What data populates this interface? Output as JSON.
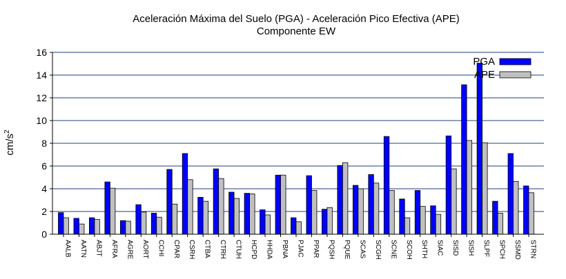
{
  "chart_data": {
    "type": "bar",
    "title": "Aceleración Máxima del Suelo (PGA) -  Aceleración Pico Efectiva (APE)",
    "subtitle": "Componente EW",
    "xlabel": "",
    "ylabel": "cm/s",
    "ylabel_superscript": "2",
    "ylim": [
      0,
      16
    ],
    "yticks": [
      "0",
      "2",
      "4",
      "6",
      "8",
      "10",
      "12",
      "14",
      "16"
    ],
    "grid": true,
    "legend_position": "top-right",
    "categories": [
      "AALB",
      "AATN",
      "ABJT",
      "AFRA",
      "AGRE",
      "AORT",
      "CCHI",
      "CPAR",
      "CSRH",
      "CTBA",
      "CTRH",
      "CTUH",
      "HCPD",
      "HHDA",
      "PBNA",
      "PJAC",
      "PPAR",
      "PQSH",
      "PQUE",
      "SCAS",
      "SCGH",
      "SCNE",
      "SCOH",
      "SHTH",
      "SIAC",
      "SISD",
      "SISH",
      "SLPF",
      "SPCH",
      "SSMD",
      "STRN"
    ],
    "series": [
      {
        "name": "PGA",
        "color": "#0000ff",
        "values": [
          1.9,
          1.4,
          1.45,
          4.6,
          1.2,
          2.6,
          1.85,
          5.7,
          7.1,
          3.25,
          5.75,
          3.7,
          3.6,
          2.15,
          5.2,
          1.45,
          5.15,
          2.2,
          6.05,
          4.3,
          5.25,
          8.6,
          3.1,
          3.85,
          2.5,
          8.65,
          13.15,
          15.05,
          2.9,
          7.1,
          4.25
        ]
      },
      {
        "name": "APE",
        "color": "#c0c0c0",
        "values": [
          1.45,
          0.9,
          1.3,
          4.05,
          1.15,
          1.95,
          1.5,
          2.65,
          4.8,
          2.9,
          4.9,
          3.15,
          3.55,
          1.7,
          5.2,
          1.1,
          3.85,
          2.35,
          6.3,
          4.0,
          4.5,
          3.85,
          1.45,
          2.45,
          1.75,
          5.75,
          8.25,
          8.05,
          1.85,
          4.65,
          3.65
        ]
      }
    ]
  }
}
